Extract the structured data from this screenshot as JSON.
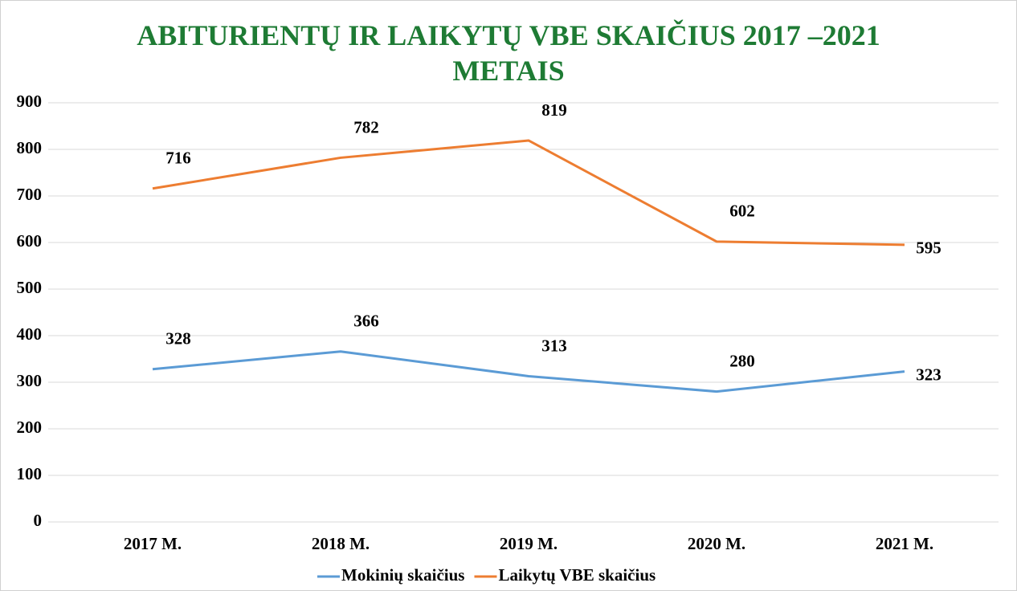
{
  "chart_data": {
    "type": "line",
    "title": "ABITURIENTŲ IR LAIKYTŲ VBE SKAIČIUS 2017 –2021 METAIS",
    "categories": [
      "2017 M.",
      "2018 M.",
      "2019 M.",
      "2020 M.",
      "2021 M."
    ],
    "series": [
      {
        "name": "Mokinių skaičius",
        "color": "#5b9bd5",
        "values": [
          328,
          366,
          313,
          280,
          323
        ]
      },
      {
        "name": "Laikytų VBE skaičius",
        "color": "#ed7d31",
        "values": [
          716,
          782,
          819,
          602,
          595
        ]
      }
    ],
    "ylim": [
      0,
      900
    ],
    "yticks": [
      0,
      100,
      200,
      300,
      400,
      500,
      600,
      700,
      800,
      900
    ],
    "grid": true,
    "legend": "bottom"
  }
}
